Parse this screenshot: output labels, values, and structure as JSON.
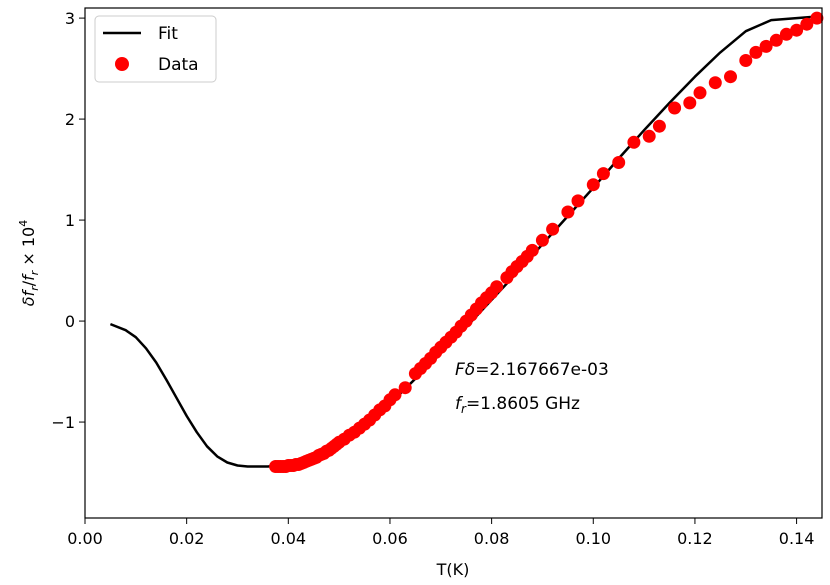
{
  "chart_data": {
    "type": "scatter",
    "xlabel": "T(K)",
    "ylabel_parts": {
      "delta": "δ",
      "f": "f",
      "sub_r": "r",
      "slash": "/",
      "times": " × 10",
      "exp": "4"
    },
    "xlim": [
      0.0,
      0.145
    ],
    "ylim": [
      -1.95,
      3.1
    ],
    "xticks": [
      0.0,
      0.02,
      0.04,
      0.06,
      0.08,
      0.1,
      0.12,
      0.14
    ],
    "xtick_labels": [
      "0.00",
      "0.02",
      "0.04",
      "0.06",
      "0.08",
      "0.10",
      "0.12",
      "0.14"
    ],
    "yticks": [
      -1,
      0,
      1,
      2,
      3
    ],
    "ytick_labels": [
      "−1",
      "0",
      "1",
      "2",
      "3"
    ],
    "grid": false,
    "legend_position": "top-left",
    "legend": [
      {
        "label": "Fit",
        "kind": "line",
        "color": "#000000"
      },
      {
        "label": "Data",
        "kind": "marker",
        "color": "#ff0000"
      }
    ],
    "annotations": {
      "line1_symbol": "Fδ",
      "line1_value": "=2.167667e-03",
      "line2_symbol": "f",
      "line2_sub": "r",
      "line2_value": "=1.8605 GHz"
    },
    "series": [
      {
        "name": "Fit",
        "kind": "line",
        "color": "#000000",
        "x": [
          0.005,
          0.008,
          0.01,
          0.012,
          0.014,
          0.016,
          0.018,
          0.02,
          0.022,
          0.024,
          0.026,
          0.028,
          0.03,
          0.032,
          0.034,
          0.036,
          0.038,
          0.04,
          0.042,
          0.044,
          0.046,
          0.048,
          0.05,
          0.052,
          0.054,
          0.056,
          0.058,
          0.06,
          0.062,
          0.064,
          0.066,
          0.068,
          0.07,
          0.075,
          0.08,
          0.085,
          0.09,
          0.095,
          0.1,
          0.105,
          0.11,
          0.115,
          0.12,
          0.125,
          0.13,
          0.135,
          0.14,
          0.145
        ],
        "y": [
          -0.03,
          -0.09,
          -0.16,
          -0.27,
          -0.41,
          -0.58,
          -0.76,
          -0.94,
          -1.1,
          -1.24,
          -1.34,
          -1.4,
          -1.43,
          -1.44,
          -1.44,
          -1.44,
          -1.43,
          -1.42,
          -1.39,
          -1.36,
          -1.32,
          -1.27,
          -1.21,
          -1.15,
          -1.08,
          -1.0,
          -0.91,
          -0.82,
          -0.72,
          -0.62,
          -0.52,
          -0.42,
          -0.32,
          -0.06,
          0.21,
          0.48,
          0.76,
          1.04,
          1.32,
          1.61,
          1.89,
          2.16,
          2.42,
          2.66,
          2.87,
          2.98,
          3.0,
          3.02
        ]
      },
      {
        "name": "Data",
        "kind": "scatter",
        "color": "#ff0000",
        "x": [
          0.0375,
          0.038,
          0.0385,
          0.039,
          0.0395,
          0.04,
          0.0405,
          0.041,
          0.0415,
          0.042,
          0.0425,
          0.043,
          0.0435,
          0.044,
          0.0445,
          0.045,
          0.0455,
          0.046,
          0.0465,
          0.047,
          0.0475,
          0.048,
          0.0485,
          0.049,
          0.0495,
          0.05,
          0.051,
          0.052,
          0.053,
          0.054,
          0.055,
          0.056,
          0.057,
          0.058,
          0.059,
          0.06,
          0.061,
          0.063,
          0.065,
          0.066,
          0.067,
          0.068,
          0.069,
          0.07,
          0.071,
          0.072,
          0.073,
          0.074,
          0.075,
          0.076,
          0.077,
          0.078,
          0.079,
          0.08,
          0.081,
          0.083,
          0.084,
          0.085,
          0.086,
          0.087,
          0.088,
          0.09,
          0.092,
          0.095,
          0.097,
          0.1,
          0.102,
          0.105,
          0.108,
          0.111,
          0.113,
          0.116,
          0.119,
          0.121,
          0.124,
          0.127,
          0.13,
          0.132,
          0.134,
          0.136,
          0.138,
          0.14,
          0.142,
          0.144
        ],
        "y": [
          -1.44,
          -1.44,
          -1.44,
          -1.44,
          -1.44,
          -1.43,
          -1.43,
          -1.43,
          -1.42,
          -1.42,
          -1.41,
          -1.4,
          -1.39,
          -1.38,
          -1.37,
          -1.36,
          -1.35,
          -1.33,
          -1.32,
          -1.31,
          -1.29,
          -1.28,
          -1.26,
          -1.24,
          -1.22,
          -1.2,
          -1.17,
          -1.13,
          -1.1,
          -1.06,
          -1.02,
          -0.98,
          -0.93,
          -0.88,
          -0.84,
          -0.78,
          -0.73,
          -0.66,
          -0.52,
          -0.47,
          -0.42,
          -0.37,
          -0.31,
          -0.26,
          -0.21,
          -0.16,
          -0.11,
          -0.05,
          0.0,
          0.06,
          0.12,
          0.18,
          0.23,
          0.28,
          0.34,
          0.43,
          0.49,
          0.54,
          0.59,
          0.64,
          0.7,
          0.8,
          0.91,
          1.08,
          1.19,
          1.35,
          1.46,
          1.57,
          1.77,
          1.83,
          1.93,
          2.11,
          2.16,
          2.26,
          2.36,
          2.42,
          2.58,
          2.66,
          2.72,
          2.78,
          2.84,
          2.88,
          2.94,
          3.0
        ]
      }
    ]
  }
}
